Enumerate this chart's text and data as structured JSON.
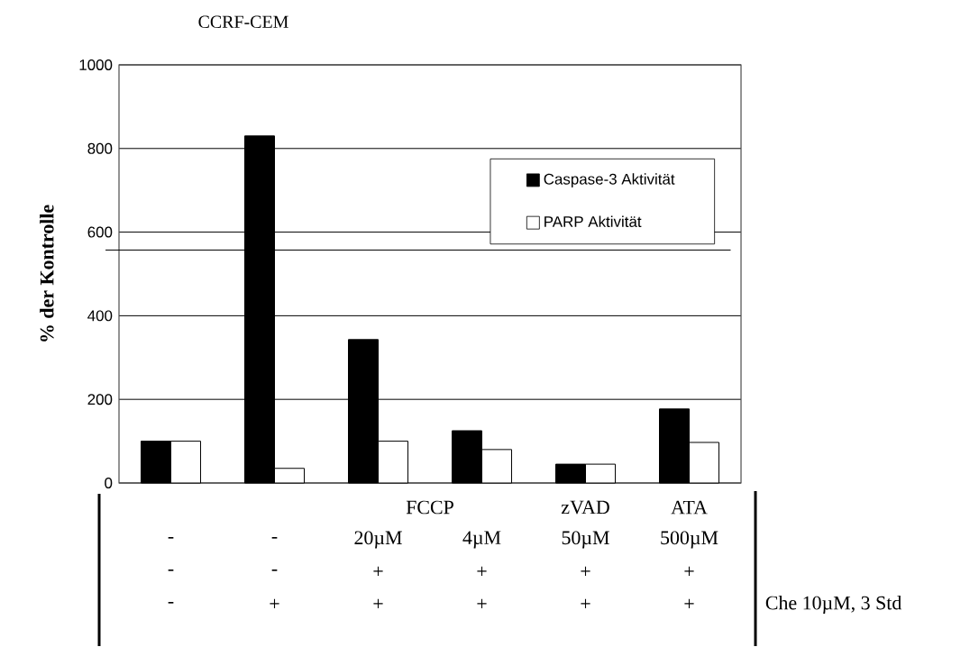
{
  "chart_data": {
    "type": "bar",
    "title": "CCRF-CEM",
    "ylabel": "% der Kontrolle",
    "categories": [
      null,
      null,
      null,
      null,
      null,
      null
    ],
    "series": [
      {
        "name": "Caspase-3 Aktivität",
        "color": "#000000",
        "values": [
          100,
          830,
          343,
          125,
          45,
          177
        ]
      },
      {
        "name": "PARP Aktivität",
        "color": "#ffffff",
        "values": [
          100,
          35,
          100,
          80,
          45,
          97
        ]
      }
    ],
    "ylim": [
      0,
      1000
    ],
    "yticks": [
      0,
      200,
      400,
      600,
      800,
      1000
    ],
    "grid": "y",
    "legend": "top right",
    "ref_lines": [
      {
        "axis": "y",
        "value": 557
      }
    ],
    "annotations": [
      "FCCP",
      "zVAD",
      "ATA",
      "-",
      "-",
      "20µM",
      "4µM",
      "50µM",
      "500µM",
      "-",
      "-",
      "+",
      "+",
      "+",
      "+",
      "-",
      "+",
      "+",
      "+",
      "+",
      "+",
      "Che 10µM, 3 Std"
    ]
  }
}
